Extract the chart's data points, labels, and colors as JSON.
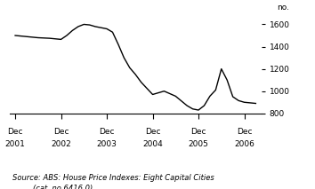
{
  "ylabel": "no.",
  "source_line1": "Source: ABS: House Price Indexes: Eight Capital Cities",
  "source_line2": "(cat. no.6416.0)",
  "ylim": [
    800,
    1700
  ],
  "yticks": [
    800,
    1000,
    1200,
    1400,
    1600
  ],
  "xtick_positions": [
    0,
    4,
    8,
    12,
    16,
    20
  ],
  "xtick_labels_top": [
    "Dec",
    "Dec",
    "Dec",
    "Dec",
    "Dec",
    "Dec"
  ],
  "xtick_labels_bot": [
    "2001",
    "2002",
    "2003",
    "2004",
    "2005",
    "2006"
  ],
  "x": [
    0,
    1,
    2,
    3,
    4,
    4.5,
    5,
    5.5,
    6,
    6.5,
    7,
    7.5,
    8,
    8.5,
    9,
    9.5,
    10,
    10.5,
    11,
    12,
    13,
    14,
    15,
    15.5,
    16,
    16.5,
    17,
    17.5,
    18,
    18.5,
    19,
    19.5,
    20,
    21
  ],
  "y": [
    1500,
    1490,
    1480,
    1475,
    1465,
    1500,
    1545,
    1580,
    1600,
    1595,
    1580,
    1570,
    1560,
    1530,
    1420,
    1300,
    1210,
    1150,
    1080,
    970,
    1000,
    955,
    870,
    840,
    830,
    870,
    955,
    1010,
    1200,
    1100,
    950,
    915,
    900,
    890
  ],
  "line_color": "#000000",
  "line_width": 1.0,
  "background_color": "#ffffff",
  "label_fontsize": 6.5,
  "source_fontsize": 6.0
}
